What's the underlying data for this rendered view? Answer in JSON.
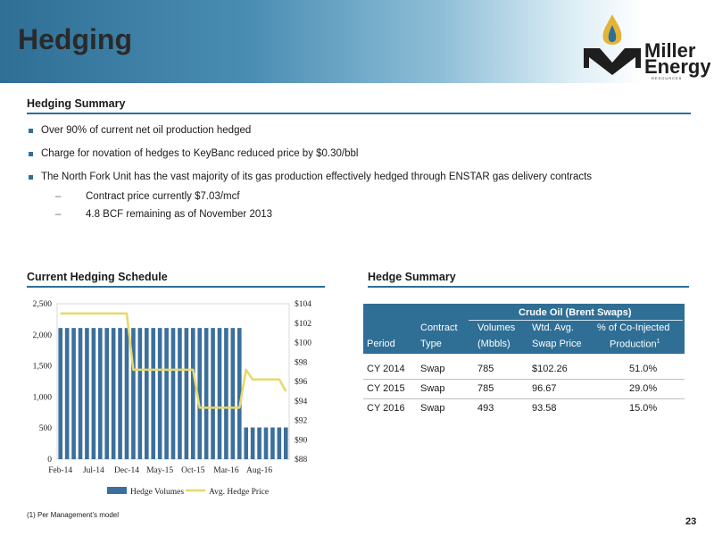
{
  "page": {
    "title": "Hedging",
    "page_number": "23",
    "footnote": "(1) Per Management’s model"
  },
  "logo": {
    "line1": "Miller",
    "line2": "Energy",
    "line3": "RESOURCES",
    "mark": "M"
  },
  "colors": {
    "accent": "#2f6f96",
    "bar": "#3b6f9c",
    "line": "#e8d86a",
    "flame": "#e2b53a"
  },
  "summary": {
    "heading": "Hedging Summary",
    "bullets": [
      "Over 90% of current net oil production hedged",
      "Charge for novation of hedges to KeyBanc reduced price by $0.30/bbl",
      "The North Fork Unit has the vast majority of its gas production effectively hedged through ENSTAR gas delivery contracts"
    ],
    "sub_bullets": [
      "Contract price currently $7.03/mcf",
      "4.8 BCF remaining as of November 2013"
    ]
  },
  "chart_heading": "Current Hedging Schedule",
  "chart_data": {
    "type": "bar",
    "title": "",
    "categories": [
      "Feb-14",
      "Mar-14",
      "Apr-14",
      "May-14",
      "Jun-14",
      "Jul-14",
      "Aug-14",
      "Sep-14",
      "Oct-14",
      "Nov-14",
      "Dec-14",
      "Jan-15",
      "Feb-15",
      "Mar-15",
      "Apr-15",
      "May-15",
      "Jun-15",
      "Jul-15",
      "Aug-15",
      "Sep-15",
      "Oct-15",
      "Nov-15",
      "Dec-15",
      "Jan-16",
      "Feb-16",
      "Mar-16",
      "Apr-16",
      "May-16",
      "Jun-16",
      "Jul-16",
      "Aug-16",
      "Sep-16",
      "Oct-16",
      "Nov-16",
      "Dec-16"
    ],
    "x_tick_labels": [
      "Feb-14",
      "Jul-14",
      "Dec-14",
      "May-15",
      "Oct-15",
      "Mar-16",
      "Aug-16"
    ],
    "y_left_ticks": [
      "0",
      "500",
      "1,000",
      "1,500",
      "2,000",
      "2,500"
    ],
    "y_right_ticks": [
      "$88",
      "$90",
      "$92",
      "$94",
      "$96",
      "$98",
      "$100",
      "$102",
      "$104"
    ],
    "ylim_left": [
      0,
      2500
    ],
    "ylim_right": [
      88,
      104
    ],
    "series": [
      {
        "name": "Hedge Volumes",
        "type": "bar",
        "axis": "left",
        "values": [
          2110,
          2110,
          2110,
          2110,
          2110,
          2110,
          2110,
          2110,
          2110,
          2110,
          2110,
          2110,
          2110,
          2110,
          2110,
          2110,
          2110,
          2110,
          2110,
          2110,
          2110,
          2110,
          2110,
          2110,
          2110,
          2110,
          2110,
          2110,
          510,
          510,
          510,
          510,
          510,
          510,
          510
        ]
      },
      {
        "name": "Avg. Hedge Price",
        "type": "line",
        "axis": "right",
        "values": [
          103,
          103,
          103,
          103,
          103,
          103,
          103,
          103,
          103,
          103,
          103,
          97.2,
          97.2,
          97.2,
          97.2,
          97.2,
          97.2,
          97.2,
          97.2,
          97.2,
          97.2,
          93.3,
          93.3,
          93.3,
          93.3,
          93.3,
          93.3,
          93.3,
          97.2,
          96.2,
          96.2,
          96.2,
          96.2,
          96.2,
          95.0
        ]
      }
    ],
    "legend_position": "bottom"
  },
  "table": {
    "heading": "Hedge Summary",
    "group_header": "Crude Oil (Brent Swaps)",
    "columns": [
      [
        "",
        "Period"
      ],
      [
        "Contract",
        "Type"
      ],
      [
        "Volumes",
        "(Mbbls)"
      ],
      [
        "Wtd. Avg.",
        "Swap Price"
      ],
      [
        "% of Co-Injected",
        "Production"
      ]
    ],
    "production_footnote_marker": "1",
    "rows": [
      [
        "CY 2014",
        "Swap",
        "785",
        "$102.26",
        "51.0%"
      ],
      [
        "CY 2015",
        "Swap",
        "785",
        "96.67",
        "29.0%"
      ],
      [
        "CY 2016",
        "Swap",
        "493",
        "93.58",
        "15.0%"
      ]
    ]
  }
}
